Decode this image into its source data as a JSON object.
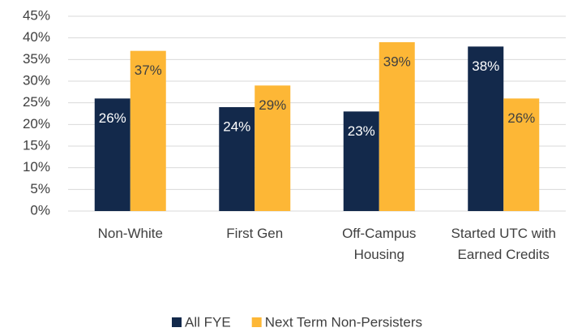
{
  "chart_data": {
    "type": "bar",
    "categories": [
      "Non-White",
      "First Gen",
      "Off-Campus Housing",
      "Started UTC with Earned Credits"
    ],
    "series": [
      {
        "name": "All FYE",
        "color": "#13294b",
        "values": [
          26,
          24,
          23,
          38
        ],
        "value_labels": [
          "26%",
          "24%",
          "23%",
          "38%"
        ]
      },
      {
        "name": "Next Term Non-Persisters",
        "color": "#fdb736",
        "values": [
          37,
          29,
          39,
          26
        ],
        "value_labels": [
          "37%",
          "29%",
          "39%",
          "26%"
        ]
      }
    ],
    "ylim": [
      0,
      45
    ],
    "yticks": [
      {
        "value": 0,
        "label": "0%"
      },
      {
        "value": 5,
        "label": "5%"
      },
      {
        "value": 10,
        "label": "10%"
      },
      {
        "value": 15,
        "label": "15%"
      },
      {
        "value": 20,
        "label": "20%"
      },
      {
        "value": 25,
        "label": "25%"
      },
      {
        "value": 30,
        "label": "30%"
      },
      {
        "value": 35,
        "label": "35%"
      },
      {
        "value": 40,
        "label": "40%"
      },
      {
        "value": 45,
        "label": "45%"
      }
    ],
    "grid": true,
    "legend": "bottom"
  }
}
